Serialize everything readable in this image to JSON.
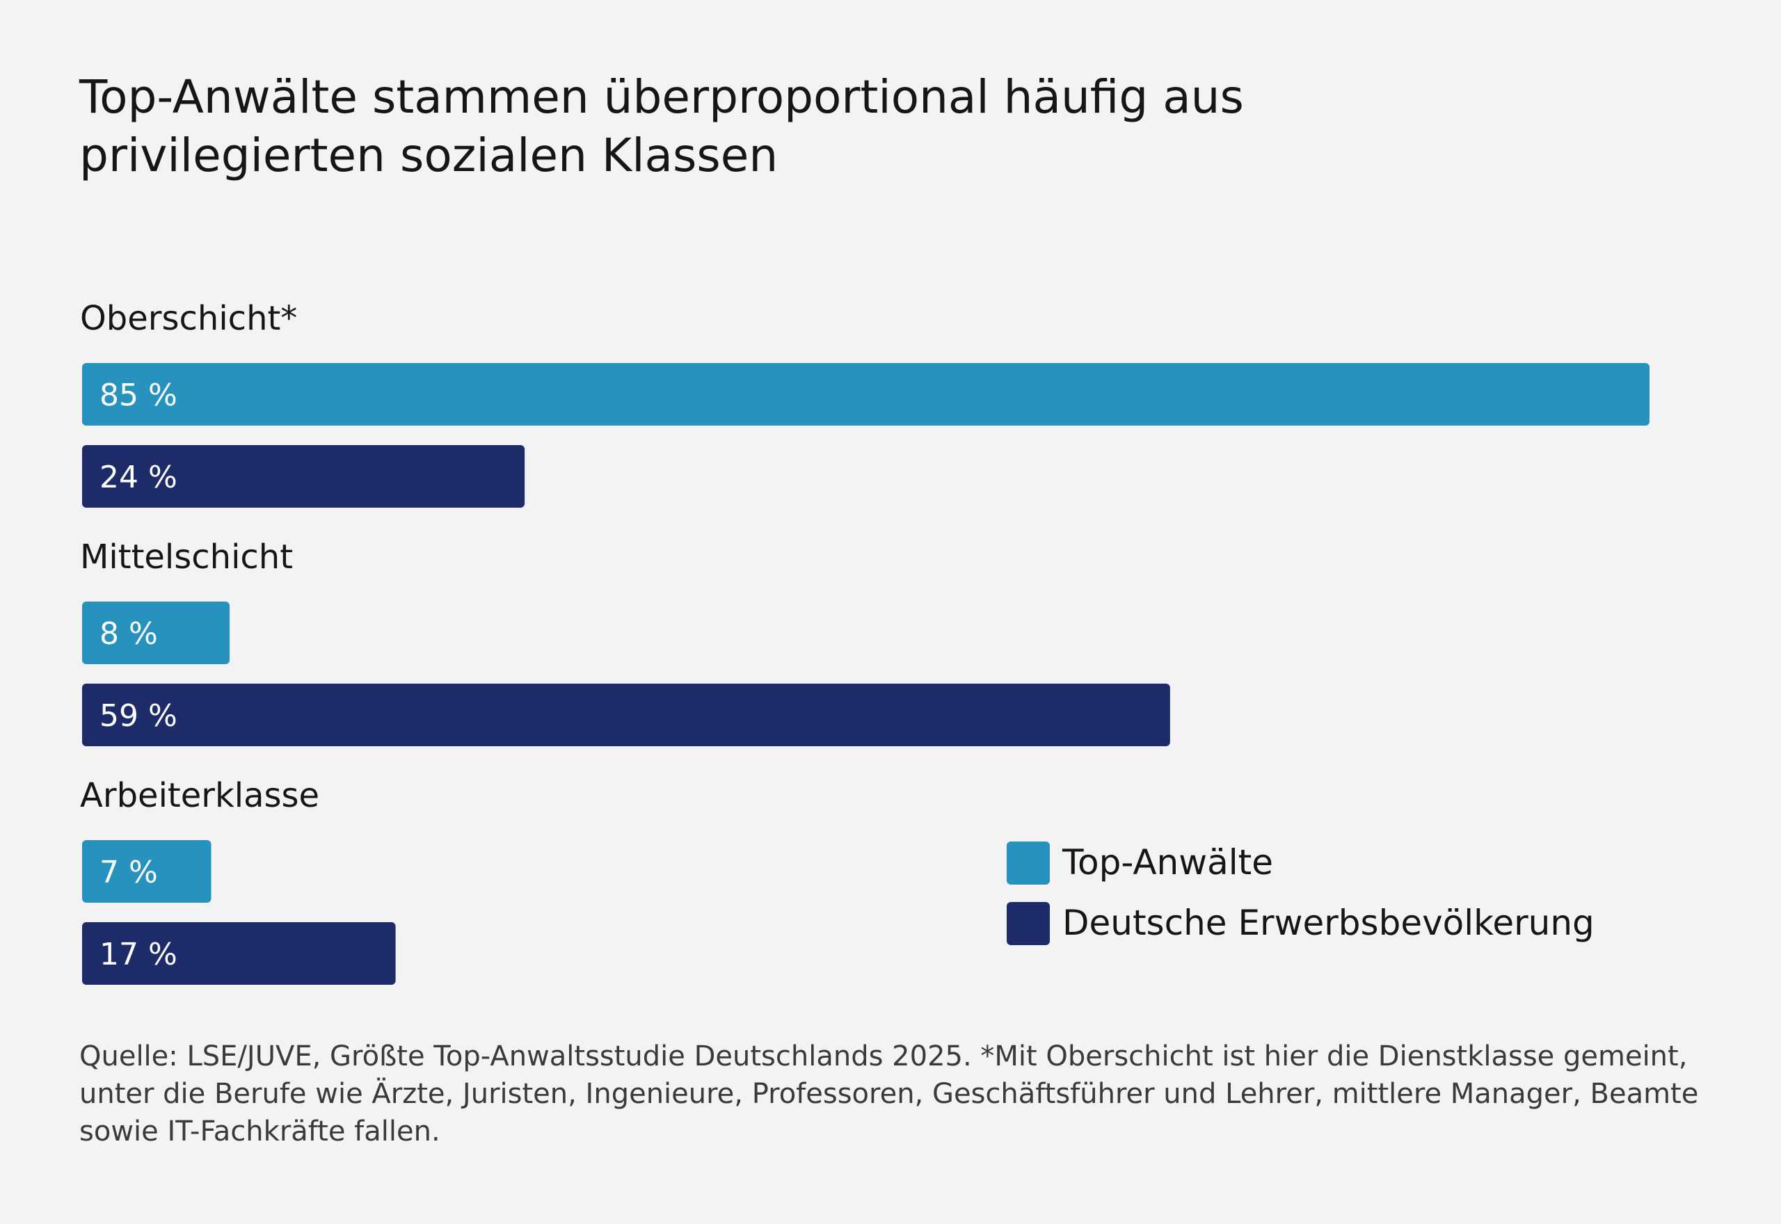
{
  "title": {
    "line1": "Top-Anwälte stammen überproportional häufig aus",
    "line2": "privilegierten sozialen Klassen"
  },
  "chart_data": {
    "type": "bar",
    "orientation": "horizontal",
    "categories": [
      "Oberschicht*",
      "Mittelschicht",
      "Arbeiterklasse"
    ],
    "series": [
      {
        "name": "Top-Anwälte",
        "values": [
          85,
          8,
          7
        ],
        "labels": [
          "85 %",
          "8 %",
          "7 %"
        ],
        "color": "#2892be"
      },
      {
        "name": "Deutsche Erwerbsbevölkerung",
        "values": [
          24,
          59,
          17
        ],
        "labels": [
          "24 %",
          "59 %",
          "17 %"
        ],
        "color": "#1e2b69"
      }
    ],
    "unit": "%",
    "xlim": [
      0,
      85
    ],
    "grid": false,
    "axes_visible": false,
    "legend_position": "bottom-right"
  },
  "source_text": "Quelle: LSE/JUVE, Größte Top-Anwaltsstudie Deutschlands 2025. *Mit Oberschicht ist hier die Dienstklasse gemeint, unter die Berufe wie Ärzte, Juristen, Ingenieure, Professoren, Geschäftsführer und Lehrer, mittlere Manager, Beamte sowie IT-Fachkräfte fallen.",
  "colors": {
    "background": "#f3f3f3",
    "text": "#161616",
    "source_text": "#3a3a3a"
  }
}
